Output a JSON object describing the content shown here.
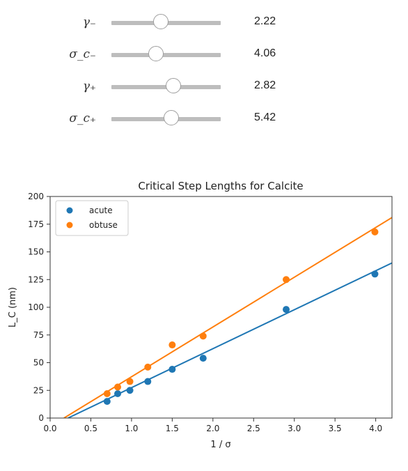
{
  "sliders": [
    {
      "label": "γ₋",
      "value": "2.22",
      "fraction": 0.45
    },
    {
      "label": "σ_c₋",
      "value": "4.06",
      "fraction": 0.41
    },
    {
      "label": "γ₊",
      "value": "2.82",
      "fraction": 0.57
    },
    {
      "label": "σ_c₊",
      "value": "5.42",
      "fraction": 0.55
    }
  ],
  "chart_data": {
    "type": "scatter",
    "title": "Critical Step Lengths for Calcite",
    "xlabel": "1 / σ",
    "ylabel": "L_C (nm)",
    "xlim": [
      0.0,
      4.2
    ],
    "ylim": [
      0,
      200
    ],
    "x_ticks": [
      "0.0",
      "0.5",
      "1.0",
      "1.5",
      "2.0",
      "2.5",
      "3.0",
      "3.5",
      "4.0"
    ],
    "y_ticks": [
      "0",
      "25",
      "50",
      "75",
      "100",
      "125",
      "150",
      "175",
      "200"
    ],
    "grid": false,
    "legend": "top-left",
    "series": [
      {
        "name": "acute",
        "color": "#1f77b4",
        "x": [
          0.7,
          0.83,
          0.98,
          1.2,
          1.5,
          1.88,
          2.9,
          3.99
        ],
        "y": [
          15,
          22,
          25,
          33,
          44,
          54,
          98,
          130
        ],
        "fit": {
          "x": [
            0.22,
            4.2
          ],
          "y": [
            0,
            140
          ]
        }
      },
      {
        "name": "obtuse",
        "color": "#ff7f0e",
        "x": [
          0.7,
          0.83,
          0.98,
          1.2,
          1.5,
          1.88,
          2.9,
          3.99
        ],
        "y": [
          22,
          28,
          33,
          46,
          66,
          74,
          125,
          168
        ],
        "fit": {
          "x": [
            0.17,
            4.2
          ],
          "y": [
            0,
            181
          ]
        }
      }
    ]
  }
}
